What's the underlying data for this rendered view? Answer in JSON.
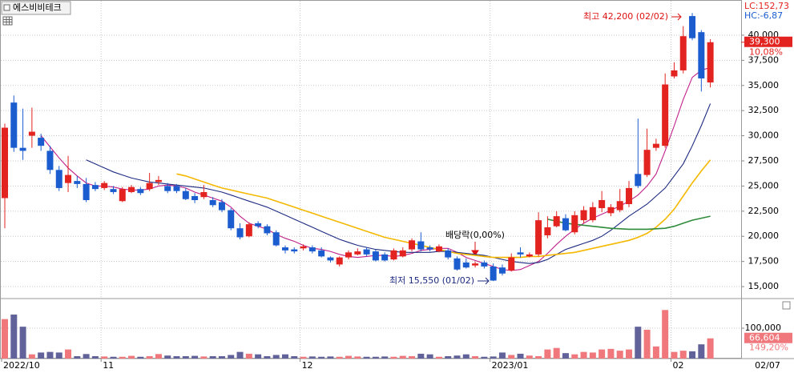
{
  "chart_data": {
    "type": "candlestick",
    "title": "에스비비테크",
    "categories": [
      "2022/10",
      null,
      null,
      null,
      null,
      null,
      null,
      null,
      null,
      null,
      null,
      "11",
      null,
      null,
      null,
      null,
      null,
      null,
      null,
      null,
      null,
      null,
      null,
      null,
      null,
      null,
      null,
      null,
      null,
      null,
      null,
      null,
      null,
      "12",
      null,
      null,
      null,
      null,
      null,
      null,
      null,
      null,
      null,
      null,
      null,
      null,
      null,
      null,
      null,
      null,
      null,
      null,
      null,
      null,
      "2023/01",
      null,
      null,
      null,
      null,
      null,
      null,
      null,
      null,
      null,
      null,
      null,
      null,
      null,
      null,
      null,
      null,
      null,
      null,
      null,
      "02",
      null,
      null,
      null,
      "02/07"
    ],
    "open": [
      23800,
      33300,
      28800,
      30000,
      29800,
      28500,
      26600,
      25300,
      25500,
      25200,
      25100,
      24800,
      24700,
      23500,
      24400,
      24700,
      24700,
      25400,
      25000,
      25000,
      24500,
      24000,
      23900,
      23600,
      23400,
      22600,
      20800,
      20000,
      21300,
      21000,
      20400,
      18900,
      18700,
      18800,
      18900,
      18600,
      17900,
      17200,
      17900,
      18200,
      18700,
      18500,
      18200,
      17700,
      18000,
      18700,
      19500,
      18900,
      18500,
      18600,
      17800,
      17400,
      17100,
      17400,
      17000,
      16900,
      16600,
      18400,
      18000,
      18200,
      20100,
      21000,
      21800,
      20400,
      21600,
      21600,
      22800,
      22300,
      22600,
      23200,
      26200,
      26100,
      28800,
      29000,
      35900,
      36500,
      41900,
      40300,
      35300
    ],
    "high": [
      31200,
      34000,
      32700,
      32800,
      30200,
      29000,
      27000,
      28000,
      26000,
      25800,
      25400,
      25500,
      25000,
      24900,
      25100,
      24900,
      26300,
      26000,
      25300,
      25200,
      24800,
      24300,
      25100,
      23900,
      23700,
      22800,
      21300,
      21400,
      21500,
      21200,
      20600,
      19100,
      18900,
      19200,
      19100,
      18900,
      18000,
      18000,
      18600,
      18800,
      18900,
      18700,
      18400,
      18800,
      18900,
      19800,
      20400,
      19100,
      19200,
      18800,
      18000,
      17800,
      17500,
      17600,
      17300,
      17200,
      18300,
      18900,
      18400,
      22400,
      22000,
      22500,
      22200,
      22500,
      23000,
      23400,
      24500,
      23200,
      24700,
      25500,
      31700,
      30700,
      29700,
      36200,
      37300,
      40900,
      42200,
      40500,
      39600
    ],
    "low": [
      20800,
      28400,
      27600,
      28800,
      28500,
      26200,
      24500,
      24400,
      24800,
      23400,
      24500,
      24600,
      24200,
      23400,
      24300,
      24100,
      24500,
      25100,
      24300,
      24300,
      23600,
      23300,
      23700,
      22900,
      22400,
      20600,
      19700,
      19900,
      20800,
      20100,
      19000,
      18300,
      18300,
      18600,
      18300,
      17900,
      17400,
      17000,
      17700,
      18100,
      18000,
      17500,
      17500,
      17600,
      17900,
      18500,
      18500,
      18500,
      18400,
      17700,
      16600,
      16800,
      16900,
      16800,
      15550,
      16100,
      16500,
      17900,
      17900,
      18000,
      19800,
      20900,
      20500,
      20200,
      21300,
      21400,
      22400,
      22000,
      22400,
      22900,
      24800,
      25900,
      28500,
      28800,
      35700,
      36200,
      39500,
      34400,
      34800
    ],
    "close": [
      30800,
      28800,
      28500,
      30400,
      29000,
      26600,
      24800,
      26100,
      25200,
      23600,
      24700,
      25300,
      24400,
      24700,
      24900,
      24300,
      25300,
      25600,
      24500,
      24500,
      23700,
      23600,
      24400,
      23100,
      22600,
      20800,
      19900,
      21200,
      21000,
      20300,
      19100,
      18600,
      18500,
      19000,
      18500,
      18000,
      17600,
      17900,
      18400,
      18500,
      18200,
      17600,
      17600,
      18600,
      18600,
      19600,
      18700,
      18700,
      19000,
      17900,
      16700,
      16900,
      17300,
      17000,
      15600,
      16300,
      17900,
      18200,
      18200,
      21600,
      20900,
      22000,
      20600,
      22100,
      22600,
      22900,
      23600,
      22900,
      23500,
      24800,
      25000,
      28600,
      29200,
      35100,
      36500,
      39900,
      39700,
      35700,
      39300
    ],
    "close_label": "39,300",
    "change_label": "10,08%",
    "up_color": "#e3231f",
    "down_color": "#1b5ccf",
    "moving_averages": [
      {
        "color": "#c0208a",
        "values": [
          null,
          null,
          null,
          null,
          30000,
          28900,
          27800,
          26800,
          26000,
          25300,
          25000,
          25000,
          24900,
          24700,
          24600,
          24600,
          24700,
          25000,
          25100,
          25000,
          24800,
          24400,
          24100,
          23800,
          23500,
          22900,
          22000,
          21300,
          21000,
          20700,
          20200,
          19800,
          19500,
          19100,
          18800,
          18700,
          18500,
          18200,
          18000,
          17900,
          18000,
          18100,
          18100,
          18000,
          18100,
          18300,
          18600,
          18700,
          18800,
          18800,
          18400,
          17900,
          17600,
          17300,
          17000,
          16700,
          16600,
          16700,
          17100,
          17500,
          18300,
          19200,
          20000,
          20700,
          21300,
          21800,
          22200,
          22600,
          23000,
          23500,
          24100,
          25000,
          26200,
          28500,
          31000,
          33600,
          35800,
          36500,
          36800
        ]
      },
      {
        "color": "#1c2a80",
        "values": [
          null,
          null,
          null,
          null,
          null,
          null,
          null,
          null,
          null,
          27600,
          27200,
          26800,
          26400,
          26100,
          25800,
          25600,
          25400,
          25300,
          25200,
          25100,
          25000,
          24900,
          24800,
          24600,
          24400,
          24100,
          23800,
          23500,
          23200,
          22900,
          22500,
          22100,
          21700,
          21300,
          20900,
          20500,
          20100,
          19700,
          19400,
          19100,
          18900,
          18700,
          18600,
          18500,
          18400,
          18400,
          18400,
          18400,
          18500,
          18500,
          18400,
          18300,
          18200,
          18100,
          17900,
          17700,
          17500,
          17400,
          17300,
          17400,
          17700,
          18200,
          18700,
          19000,
          19300,
          19600,
          20000,
          20600,
          21300,
          22000,
          22600,
          23200,
          24000,
          24800,
          26000,
          27200,
          29000,
          31000,
          33200
        ]
      },
      {
        "color": "#f5b800",
        "values": [
          null,
          null,
          null,
          null,
          null,
          null,
          null,
          null,
          null,
          null,
          null,
          null,
          null,
          null,
          null,
          null,
          null,
          null,
          null,
          26200,
          26000,
          25700,
          25400,
          25100,
          24800,
          24600,
          24400,
          24200,
          24000,
          23800,
          23500,
          23200,
          22900,
          22600,
          22300,
          22000,
          21700,
          21400,
          21100,
          20800,
          20500,
          20200,
          19900,
          19700,
          19500,
          19300,
          19100,
          18900,
          18700,
          18500,
          18300,
          18200,
          18100,
          18000,
          17900,
          17900,
          17900,
          17900,
          18000,
          18000,
          18100,
          18200,
          18300,
          18400,
          18600,
          18800,
          19000,
          19200,
          19400,
          19600,
          19900,
          20300,
          20900,
          21700,
          22700,
          24000,
          25300,
          26500,
          27600
        ]
      },
      {
        "color": "#2e8b3a",
        "values": [
          null,
          null,
          null,
          null,
          null,
          null,
          null,
          null,
          null,
          null,
          null,
          null,
          null,
          null,
          null,
          null,
          null,
          null,
          null,
          null,
          null,
          null,
          null,
          null,
          null,
          null,
          null,
          null,
          null,
          null,
          null,
          null,
          null,
          null,
          null,
          null,
          null,
          null,
          null,
          null,
          null,
          null,
          null,
          null,
          null,
          null,
          null,
          null,
          null,
          null,
          null,
          null,
          null,
          null,
          null,
          null,
          null,
          null,
          null,
          null,
          21700,
          21500,
          21300,
          21200,
          21100,
          21000,
          20900,
          20800,
          20750,
          20700,
          20700,
          20700,
          20750,
          20800,
          21000,
          21300,
          21600,
          21800,
          22000
        ]
      }
    ],
    "ylim": [
      13890,
      43100
    ],
    "yticks": [
      {
        "value": 15000,
        "label": "15,000"
      },
      {
        "value": 17500,
        "label": "17,500"
      },
      {
        "value": 20000,
        "label": "20,000"
      },
      {
        "value": 22500,
        "label": "22,500"
      },
      {
        "value": 25000,
        "label": "25,000"
      },
      {
        "value": 27500,
        "label": "27,500"
      },
      {
        "value": 30000,
        "label": "30,000"
      },
      {
        "value": 32500,
        "label": "32,500"
      },
      {
        "value": 35000,
        "label": "35,000"
      },
      {
        "value": 37500,
        "label": "37,500"
      },
      {
        "value": 40000,
        "label": "40,000"
      }
    ],
    "grid": true,
    "lc_label": "LC:152,73",
    "hc_label": "HC:-6,87",
    "high_annotation": "최고 42,200 (02/02)",
    "low_annotation": "최저 15,550 (01/02)",
    "ex_dividend_annotation": "배당락(0,00%)",
    "volume": {
      "values": [
        130000,
        145000,
        105000,
        14000,
        20000,
        22000,
        20000,
        30000,
        8000,
        15000,
        8000,
        7000,
        6000,
        6000,
        9000,
        6000,
        8000,
        15000,
        10000,
        8000,
        8000,
        9000,
        7000,
        8000,
        8000,
        12000,
        22000,
        16000,
        14000,
        8000,
        12000,
        14000,
        8000,
        6000,
        7000,
        6000,
        7000,
        6000,
        9000,
        7000,
        6000,
        6000,
        7000,
        6000,
        9000,
        8000,
        16000,
        14000,
        6000,
        8000,
        10000,
        14000,
        8000,
        6000,
        7000,
        20000,
        12000,
        16000,
        10000,
        8000,
        30000,
        35000,
        18000,
        14000,
        22000,
        20000,
        30000,
        32000,
        26000,
        30000,
        105000,
        95000,
        40000,
        160000,
        22000,
        26000,
        24000,
        47000,
        66604
      ],
      "up_color": "#f0787c",
      "down_color": "#62629a",
      "ylim": [
        0,
        195000
      ],
      "yticks": [
        {
          "value": 100000,
          "label": "100,000"
        }
      ],
      "last_label": "66,604",
      "ratio_label": "149,20%"
    }
  }
}
